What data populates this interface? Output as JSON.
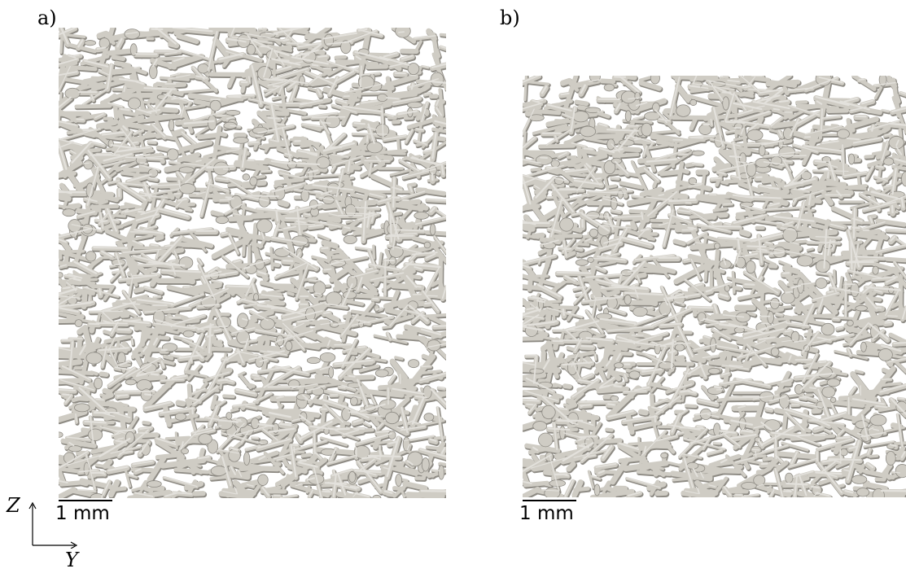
{
  "panels": [
    {
      "label": "a)",
      "scalebar": "1 mm"
    },
    {
      "label": "b)",
      "scalebar": "1 mm"
    }
  ],
  "axes": {
    "vertical": "Z",
    "horizontal": "Y"
  },
  "colors": {
    "fiber": "#cfccc4",
    "fiber_shadow": "#8e8b84",
    "background": "#ffffff"
  }
}
